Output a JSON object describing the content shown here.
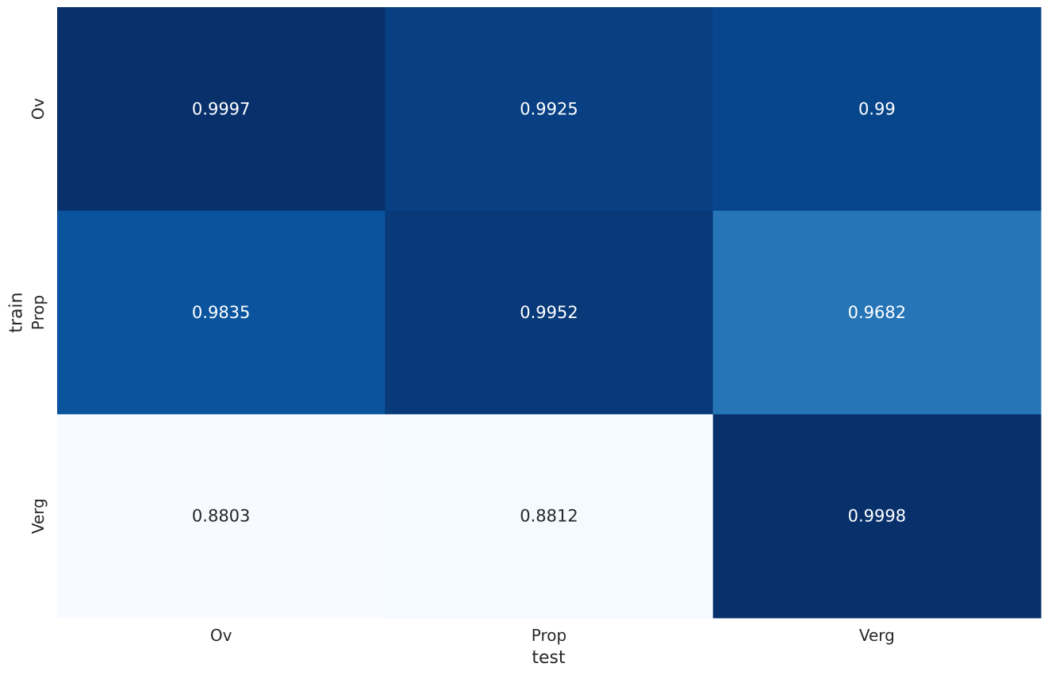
{
  "chart_data": {
    "type": "heatmap",
    "title": "",
    "xlabel": "test",
    "ylabel": "train",
    "x_categories": [
      "Ov",
      "Prop",
      "Verg"
    ],
    "y_categories": [
      "Ov",
      "Prop",
      "Verg"
    ],
    "values": [
      [
        0.9997,
        0.9925,
        0.99
      ],
      [
        0.9835,
        0.9952,
        0.9682
      ],
      [
        0.8803,
        0.8812,
        0.9998
      ]
    ],
    "value_labels": [
      [
        "0.9997",
        "0.9925",
        "0.99"
      ],
      [
        "0.9835",
        "0.9952",
        "0.9682"
      ],
      [
        "0.8803",
        "0.8812",
        "0.9998"
      ]
    ],
    "colormap": "Blues",
    "colorbar": false,
    "grid": false,
    "annotation_dark_color": "#262626",
    "annotation_light_color": "#ffffff"
  }
}
